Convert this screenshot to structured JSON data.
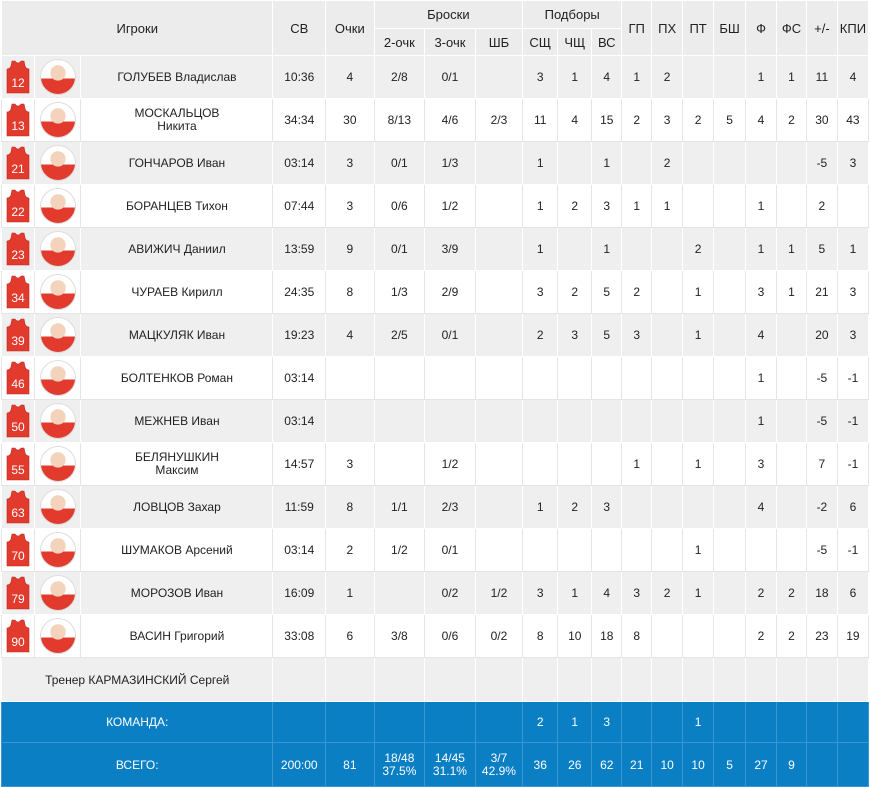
{
  "header": {
    "players": "Игроки",
    "time": "СВ",
    "points": "Очки",
    "shots": "Броски",
    "rebounds": "Подборы",
    "two_pt": "2-очк",
    "three_pt": "3-очк",
    "ft": "ШБ",
    "def": "СЩ",
    "off": "ЧЩ",
    "tot": "ВС",
    "ast": "ГП",
    "to": "ПХ",
    "stl": "ПТ",
    "blk": "БШ",
    "pf": "Ф",
    "fd": "ФС",
    "pm": "+/-",
    "eff": "КПИ"
  },
  "players": [
    {
      "num": "12",
      "name": "ГОЛУБЕВ Владислав",
      "name2": "",
      "time": "10:36",
      "pts": "4",
      "two": "2/8",
      "three": "0/1",
      "ft": "",
      "def": "3",
      "off": "1",
      "tot": "4",
      "ast": "1",
      "to": "2",
      "stl": "",
      "blk": "",
      "pf": "1",
      "fd": "1",
      "pm": "11",
      "eff": "4"
    },
    {
      "num": "13",
      "name": "МОСКАЛЬЦОВ",
      "name2": "Никита",
      "time": "34:34",
      "pts": "30",
      "two": "8/13",
      "three": "4/6",
      "ft": "2/3",
      "def": "11",
      "off": "4",
      "tot": "15",
      "ast": "2",
      "to": "3",
      "stl": "2",
      "blk": "5",
      "pf": "4",
      "fd": "2",
      "pm": "30",
      "eff": "43"
    },
    {
      "num": "21",
      "name": "ГОНЧАРОВ Иван",
      "name2": "",
      "time": "03:14",
      "pts": "3",
      "two": "0/1",
      "three": "1/3",
      "ft": "",
      "def": "1",
      "off": "",
      "tot": "1",
      "ast": "",
      "to": "2",
      "stl": "",
      "blk": "",
      "pf": "",
      "fd": "",
      "pm": "-5",
      "eff": "3"
    },
    {
      "num": "22",
      "name": "БОРАНЦЕВ Тихон",
      "name2": "",
      "time": "07:44",
      "pts": "3",
      "two": "0/6",
      "three": "1/2",
      "ft": "",
      "def": "1",
      "off": "2",
      "tot": "3",
      "ast": "1",
      "to": "1",
      "stl": "",
      "blk": "",
      "pf": "1",
      "fd": "",
      "pm": "2",
      "eff": ""
    },
    {
      "num": "23",
      "name": "АВИЖИЧ Даниил",
      "name2": "",
      "time": "13:59",
      "pts": "9",
      "two": "0/1",
      "three": "3/9",
      "ft": "",
      "def": "1",
      "off": "",
      "tot": "1",
      "ast": "",
      "to": "",
      "stl": "2",
      "blk": "",
      "pf": "1",
      "fd": "1",
      "pm": "5",
      "eff": "1"
    },
    {
      "num": "34",
      "name": "ЧУРАЕВ Кирилл",
      "name2": "",
      "time": "24:35",
      "pts": "8",
      "two": "1/3",
      "three": "2/9",
      "ft": "",
      "def": "3",
      "off": "2",
      "tot": "5",
      "ast": "2",
      "to": "",
      "stl": "1",
      "blk": "",
      "pf": "3",
      "fd": "1",
      "pm": "21",
      "eff": "3"
    },
    {
      "num": "39",
      "name": "МАЦКУЛЯК Иван",
      "name2": "",
      "time": "19:23",
      "pts": "4",
      "two": "2/5",
      "three": "0/1",
      "ft": "",
      "def": "2",
      "off": "3",
      "tot": "5",
      "ast": "3",
      "to": "",
      "stl": "1",
      "blk": "",
      "pf": "4",
      "fd": "",
      "pm": "20",
      "eff": "3"
    },
    {
      "num": "46",
      "name": "БОЛТЕНКОВ Роман",
      "name2": "",
      "time": "03:14",
      "pts": "",
      "two": "",
      "three": "",
      "ft": "",
      "def": "",
      "off": "",
      "tot": "",
      "ast": "",
      "to": "",
      "stl": "",
      "blk": "",
      "pf": "1",
      "fd": "",
      "pm": "-5",
      "eff": "-1"
    },
    {
      "num": "50",
      "name": "МЕЖНЕВ Иван",
      "name2": "",
      "time": "03:14",
      "pts": "",
      "two": "",
      "three": "",
      "ft": "",
      "def": "",
      "off": "",
      "tot": "",
      "ast": "",
      "to": "",
      "stl": "",
      "blk": "",
      "pf": "1",
      "fd": "",
      "pm": "-5",
      "eff": "-1"
    },
    {
      "num": "55",
      "name": "БЕЛЯНУШКИН",
      "name2": "Максим",
      "time": "14:57",
      "pts": "3",
      "two": "",
      "three": "1/2",
      "ft": "",
      "def": "",
      "off": "",
      "tot": "",
      "ast": "1",
      "to": "",
      "stl": "1",
      "blk": "",
      "pf": "3",
      "fd": "",
      "pm": "7",
      "eff": "-1"
    },
    {
      "num": "63",
      "name": "ЛОВЦОВ Захар",
      "name2": "",
      "time": "11:59",
      "pts": "8",
      "two": "1/1",
      "three": "2/3",
      "ft": "",
      "def": "1",
      "off": "2",
      "tot": "3",
      "ast": "",
      "to": "",
      "stl": "",
      "blk": "",
      "pf": "4",
      "fd": "",
      "pm": "-2",
      "eff": "6"
    },
    {
      "num": "70",
      "name": "ШУМАКОВ Арсений",
      "name2": "",
      "time": "03:14",
      "pts": "2",
      "two": "1/2",
      "three": "0/1",
      "ft": "",
      "def": "",
      "off": "",
      "tot": "",
      "ast": "",
      "to": "",
      "stl": "1",
      "blk": "",
      "pf": "",
      "fd": "",
      "pm": "-5",
      "eff": "-1"
    },
    {
      "num": "79",
      "name": "МОРОЗОВ Иван",
      "name2": "",
      "time": "16:09",
      "pts": "1",
      "two": "",
      "three": "0/2",
      "ft": "1/2",
      "def": "3",
      "off": "1",
      "tot": "4",
      "ast": "3",
      "to": "2",
      "stl": "1",
      "blk": "",
      "pf": "2",
      "fd": "2",
      "pm": "18",
      "eff": "6"
    },
    {
      "num": "90",
      "name": "ВАСИН Григорий",
      "name2": "",
      "time": "33:08",
      "pts": "6",
      "two": "3/8",
      "three": "0/6",
      "ft": "0/2",
      "def": "8",
      "off": "10",
      "tot": "18",
      "ast": "8",
      "to": "",
      "stl": "",
      "blk": "",
      "pf": "2",
      "fd": "2",
      "pm": "23",
      "eff": "19"
    }
  ],
  "coach": "Тренер КАРМАЗИНСКИЙ Сергей",
  "team": {
    "label": "КОМАНДА:",
    "def": "2",
    "off": "1",
    "tot": "3",
    "stl": "1"
  },
  "total": {
    "label": "ВСЕГО:",
    "time": "200:00",
    "pts": "81",
    "two": "18/48",
    "two_pct": "37.5%",
    "three": "14/45",
    "three_pct": "31.1%",
    "ft": "3/7",
    "ft_pct": "42.9%",
    "def": "36",
    "off": "26",
    "tot": "62",
    "ast": "21",
    "to": "10",
    "stl": "10",
    "blk": "5",
    "pf": "27",
    "fd": "9"
  },
  "colors": {
    "jersey": "#e23b2e",
    "blue": "#0a7fc4",
    "stripe": "#efefef",
    "header": "#ececec"
  }
}
